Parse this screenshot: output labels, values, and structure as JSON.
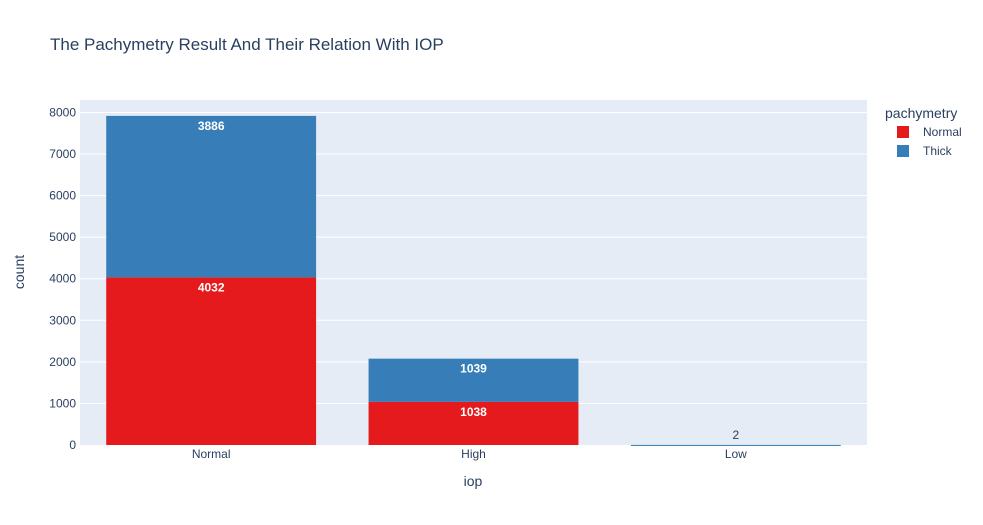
{
  "chart_data": {
    "type": "bar",
    "barmode": "stack",
    "title": "The Pachymetry Result And Their Relation With IOP",
    "xlabel": "iop",
    "ylabel": "count",
    "categories": [
      "Normal",
      "High",
      "Low"
    ],
    "ylim": [
      0,
      8300
    ],
    "yticks": [
      0,
      1000,
      2000,
      3000,
      4000,
      5000,
      6000,
      7000,
      8000
    ],
    "grid": true,
    "legend": {
      "title": "pachymetry",
      "position": "top-right"
    },
    "series": [
      {
        "name": "Normal",
        "color": "#e41a1c",
        "values": [
          4032,
          1038,
          0
        ],
        "labels": [
          "4032",
          "1038",
          ""
        ]
      },
      {
        "name": "Thick",
        "color": "#377eb8",
        "values": [
          3886,
          1039,
          2
        ],
        "labels": [
          "3886",
          "1039",
          "2"
        ]
      }
    ]
  }
}
